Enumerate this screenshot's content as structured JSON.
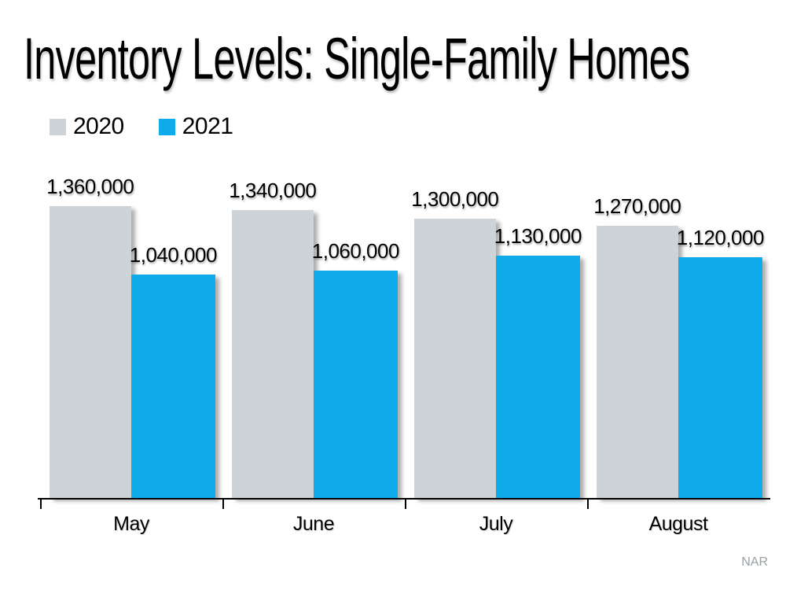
{
  "page": {
    "background": "#ffffff",
    "source_label": "NAR"
  },
  "chart_data": {
    "type": "bar",
    "title": "Inventory Levels: Single-Family Homes",
    "xlabel": "",
    "ylabel": "",
    "categories": [
      "May",
      "June",
      "July",
      "August"
    ],
    "series": [
      {
        "name": "2020",
        "color": "#CDD3D6",
        "values": [
          1360000,
          1340000,
          1300000,
          1270000
        ],
        "labels": [
          "1,360,000",
          "1,340,000",
          "1,300,000",
          "1,270,000"
        ]
      },
      {
        "name": "2021",
        "color": "#10ABEB",
        "values": [
          1040000,
          1060000,
          1130000,
          1120000
        ],
        "labels": [
          "1,040,000",
          "1,060,000",
          "1,130,000",
          "1,120,000"
        ]
      }
    ],
    "ylim": [
      0,
      1400000
    ],
    "grid": false,
    "y_axis_visible": false,
    "x_axis_color": "#000000",
    "value_labels": true,
    "legend_position": "top-left"
  }
}
